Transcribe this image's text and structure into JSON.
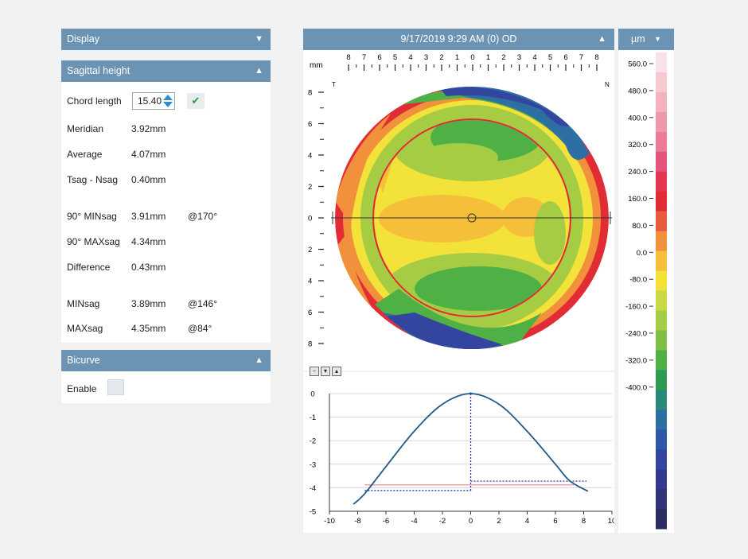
{
  "display": {
    "title": "Display"
  },
  "sagittal": {
    "title": "Sagittal height",
    "chord_label": "Chord length",
    "chord_value": "15.40",
    "rows": [
      {
        "label": "Meridian",
        "value": "3.92mm",
        "extra": ""
      },
      {
        "label": "Average",
        "value": "4.07mm",
        "extra": ""
      },
      {
        "label": "Tsag - Nsag",
        "value": "0.40mm",
        "extra": ""
      },
      {
        "label": "90° MINsag",
        "value": "3.91mm",
        "extra": "@170°"
      },
      {
        "label": "90° MAXsag",
        "value": "4.34mm",
        "extra": ""
      },
      {
        "label": "Difference",
        "value": "0.43mm",
        "extra": ""
      },
      {
        "label": "MINsag",
        "value": "3.89mm",
        "extra": "@146°"
      },
      {
        "label": "MAXsag",
        "value": "4.35mm",
        "extra": "@84°"
      }
    ]
  },
  "bicurve": {
    "title": "Bicurve",
    "enable_label": "Enable"
  },
  "map": {
    "title": "9/17/2019 9:29 AM (0) OD",
    "unit": "mm",
    "top_ticks": [
      "8",
      "7",
      "6",
      "5",
      "4",
      "3",
      "2",
      "1",
      "0",
      "1",
      "2",
      "3",
      "4",
      "5",
      "6",
      "7",
      "8"
    ],
    "left_ticks": [
      "8",
      "6",
      "4",
      "2",
      "0",
      "2",
      "4",
      "6",
      "8"
    ],
    "left_marker": "T",
    "right_marker": "N"
  },
  "scale": {
    "unit": "µm",
    "labels": [
      "560.0",
      "480.0",
      "400.0",
      "320.0",
      "240.0",
      "160.0",
      "80.0",
      "0.0",
      "-80.0",
      "-160.0",
      "-240.0",
      "-320.0",
      "-400.0"
    ],
    "colors": [
      "#f9e2e7",
      "#f6c9d3",
      "#f4b2c0",
      "#ef98ab",
      "#ea7d95",
      "#e5557a",
      "#e43552",
      "#e12c36",
      "#e65a3d",
      "#f2913c",
      "#f6bf3a",
      "#f2e23a",
      "#c9d945",
      "#a6cc44",
      "#7fc044",
      "#4fb046",
      "#2e9a54",
      "#2a8a7a",
      "#2e6fa3",
      "#2f57a8",
      "#33459f",
      "#35388f",
      "#30327a",
      "#2b2d62"
    ]
  },
  "chart_data": {
    "type": "line",
    "x": [
      -8.3,
      -7.5,
      -6,
      -4,
      -2,
      0,
      2,
      4,
      6,
      7,
      8.3
    ],
    "series": [
      {
        "values": [
          -4.7,
          -4.25,
          -3.1,
          -1.6,
          -0.45,
          0,
          -0.45,
          -1.6,
          -3.0,
          -3.7,
          -4.15
        ]
      }
    ],
    "reference_lines": [
      {
        "x": [
          -7.5,
          0
        ],
        "values": [
          -3.88,
          -3.88
        ],
        "color": "#e8909a",
        "style": "solid"
      },
      {
        "x": [
          0,
          7.3
        ],
        "values": [
          -3.88,
          -3.88
        ],
        "color": "#e8909a",
        "style": "solid"
      },
      {
        "x": [
          -7.5,
          0
        ],
        "values": [
          -4.12,
          -4.12
        ],
        "color": "#2233bb",
        "style": "dotted"
      },
      {
        "x": [
          0,
          8.2
        ],
        "values": [
          -3.72,
          -3.72
        ],
        "color": "#2233bb",
        "style": "dotted"
      },
      {
        "x": [
          0,
          0
        ],
        "values": [
          0,
          -4.12
        ],
        "color": "#2233bb",
        "style": "dotted"
      }
    ],
    "xlim": [
      -10,
      10
    ],
    "ylim": [
      -5,
      0
    ],
    "xticks": [
      "-10",
      "-8",
      "-6",
      "-4",
      "-2",
      "0",
      "2",
      "4",
      "6",
      "8",
      "10"
    ],
    "yticks": [
      "0",
      "-1",
      "-2",
      "-3",
      "-4",
      "-5"
    ],
    "grid": true
  }
}
